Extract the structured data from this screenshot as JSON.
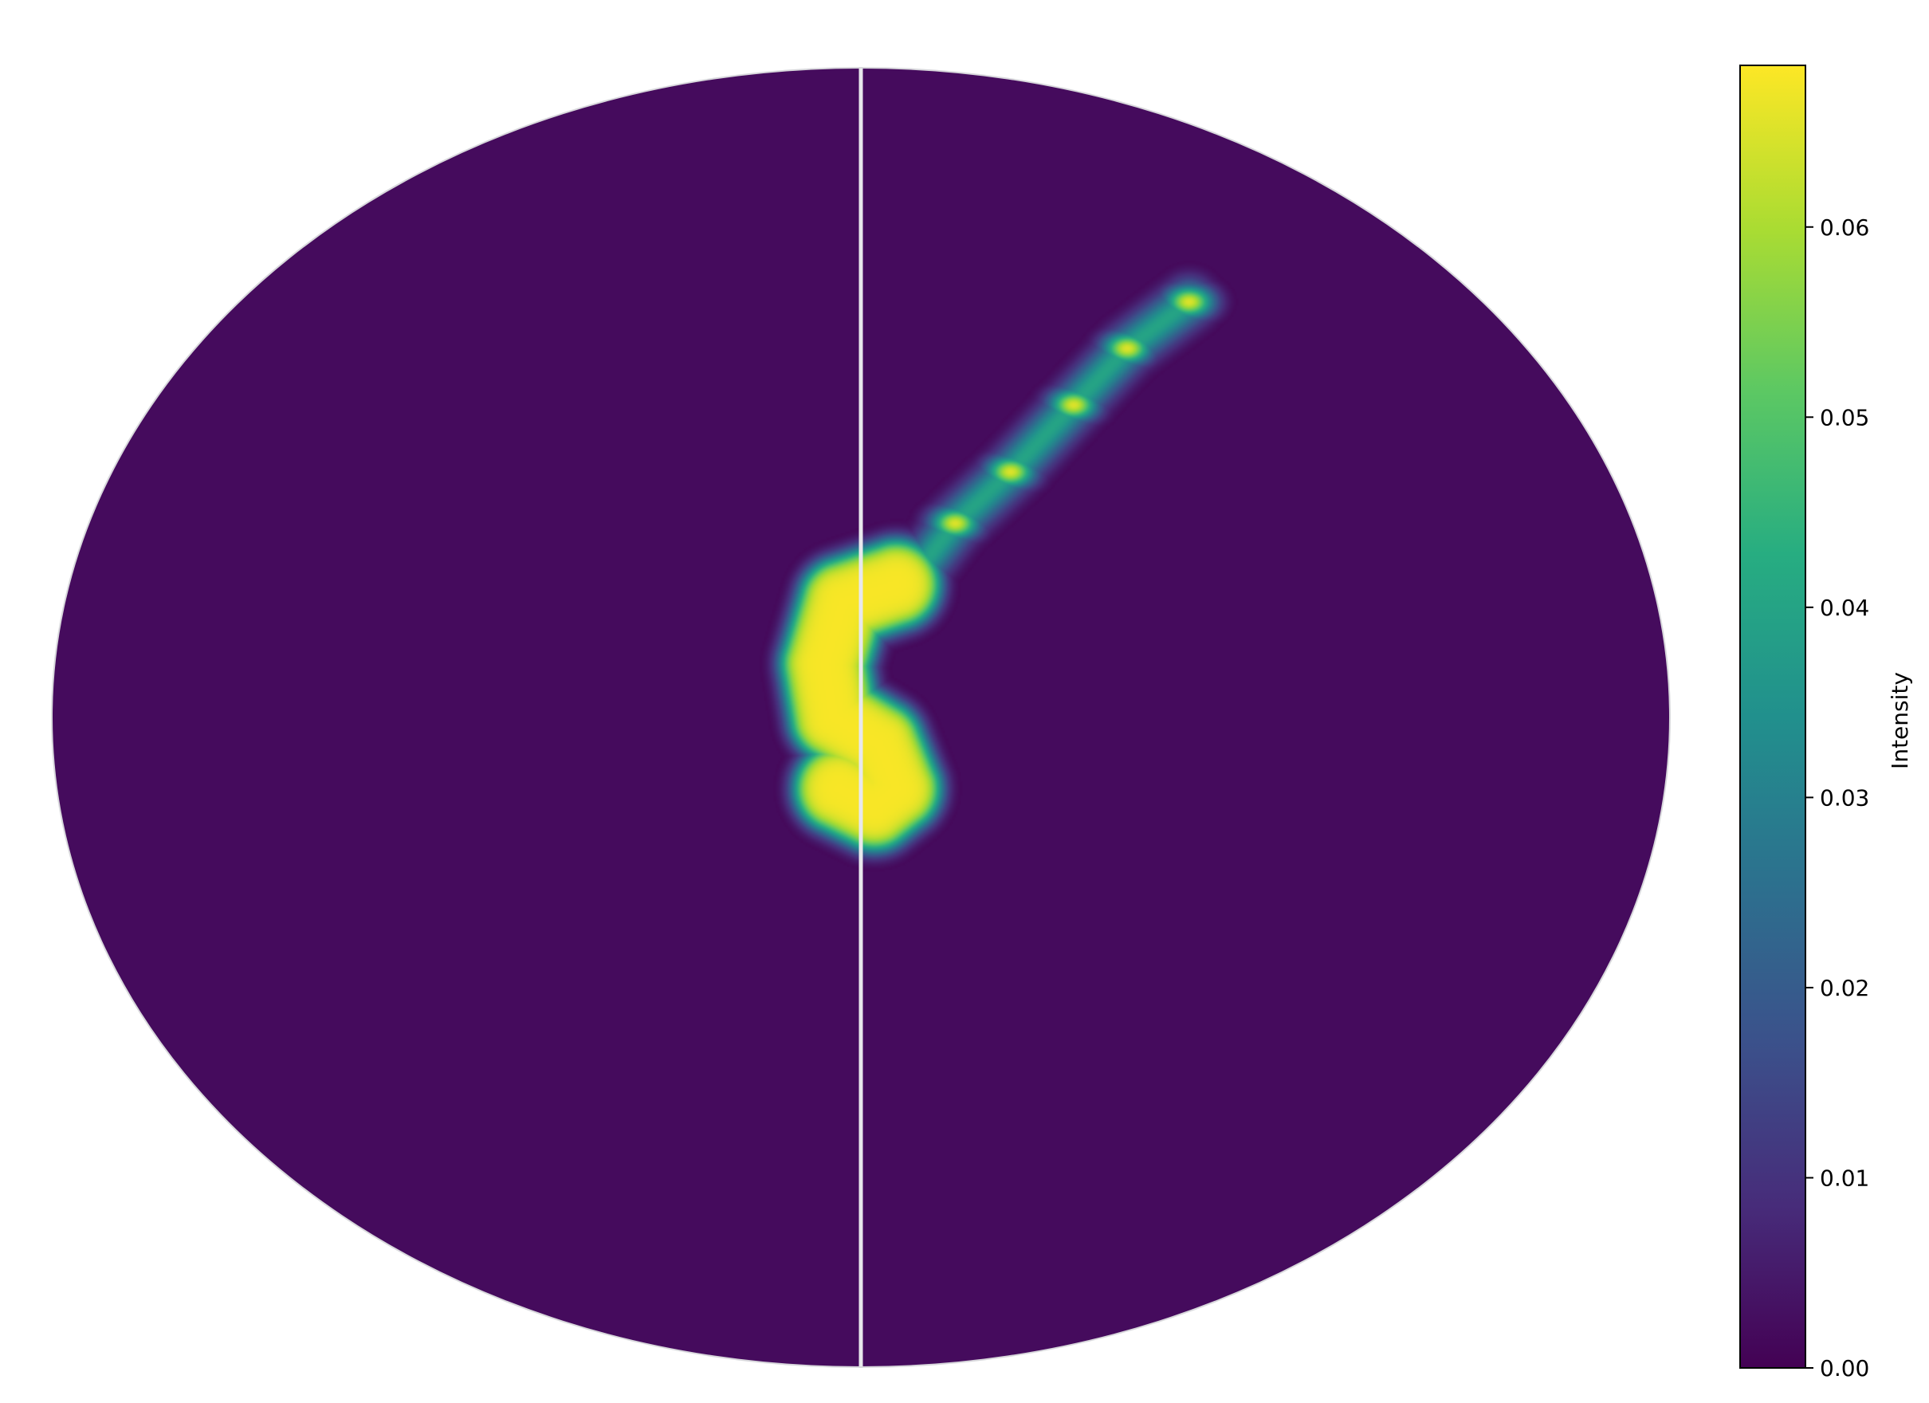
{
  "chart_data": {
    "type": "heatmap",
    "projection": "mollweide",
    "title": "",
    "colormap": "viridis",
    "colorbar": {
      "label": "Intensity",
      "min": 0.0,
      "max": 0.0685,
      "ticks": [
        0.0,
        0.01,
        0.02,
        0.03,
        0.04,
        0.05,
        0.06
      ],
      "tick_labels": [
        "0.00",
        "0.01",
        "0.02",
        "0.03",
        "0.04",
        "0.05",
        "0.06"
      ],
      "placement": "right"
    },
    "grid": false,
    "central_meridian_line": true,
    "features": {
      "blob": {
        "path_lonlat": [
          [
            8,
            15
          ],
          [
            -4,
            13
          ],
          [
            -8,
            6
          ],
          [
            -6,
            0
          ],
          [
            4,
            -3
          ],
          [
            8,
            -8
          ],
          [
            3,
            -10
          ],
          [
            -5,
            -8
          ]
        ],
        "peak": 0.068
      },
      "trail": {
        "spots_lonlat": [
          [
            9,
            14
          ],
          [
            22,
            22
          ],
          [
            36,
            28
          ],
          [
            54,
            36
          ],
          [
            72,
            43
          ],
          [
            95,
            49
          ]
        ],
        "peak": 0.065,
        "background_level": 0.04
      }
    }
  },
  "colors": {
    "background": "#ffffff",
    "sphere_fill": "#440154",
    "meridian": "#e8e8ec",
    "outline": "#d8d8dc"
  }
}
